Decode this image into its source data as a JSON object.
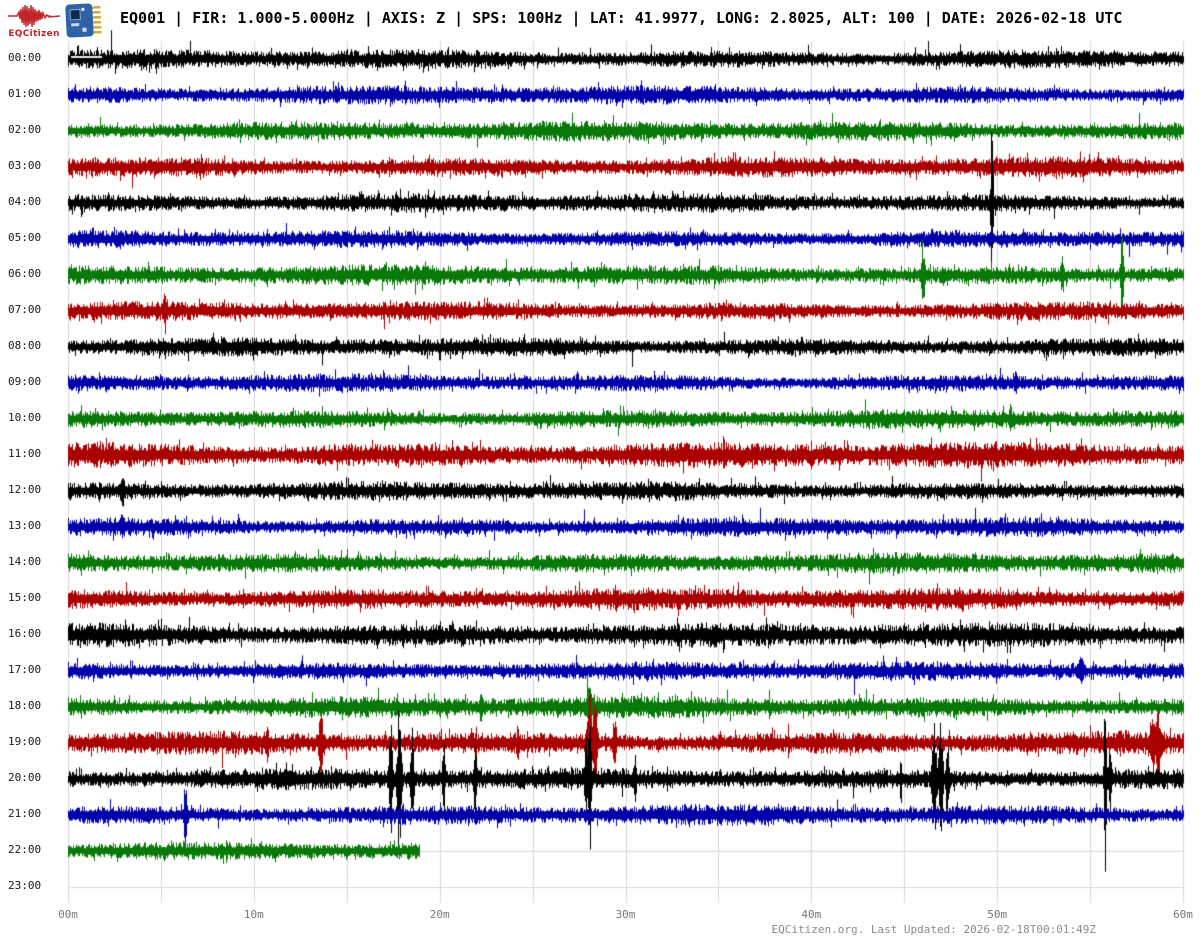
{
  "header": {
    "logo_text": "EQCitizen",
    "title": "EQ001 | FIR: 1.000-5.000Hz | AXIS: Z | SPS: 100Hz | LAT: 41.9977, LONG: 2.8025, ALT: 100 | DATE: 2026-02-18 UTC"
  },
  "footer": {
    "text": "EQCitizen.org. Last Updated: 2026-02-18T00:01:49Z"
  },
  "chart_data": {
    "type": "line",
    "subtype": "helicorder-24h",
    "title": "EQ001 24-hour seismogram, 2026-02-18 UTC",
    "x_axis": {
      "ticks": [
        "00m",
        "10m",
        "20m",
        "30m",
        "40m",
        "50m",
        "60m"
      ],
      "minutes_per_row": 60,
      "minor_grid_interval_min": 5,
      "grid": true
    },
    "y_axis": {
      "ticks": [
        "00:00",
        "01:00",
        "02:00",
        "03:00",
        "04:00",
        "05:00",
        "06:00",
        "07:00",
        "08:00",
        "09:00",
        "10:00",
        "11:00",
        "12:00",
        "13:00",
        "14:00",
        "15:00",
        "16:00",
        "17:00",
        "18:00",
        "19:00",
        "20:00",
        "21:00",
        "22:00",
        "23:00"
      ]
    },
    "palette": {
      "trace_cycle": [
        "#000000",
        "#0000aa",
        "#087808",
        "#aa0000"
      ],
      "grid": "#d8d8d8",
      "axis_text": "#777777",
      "hour_text": "#1a1a1a",
      "background": "#ffffff"
    },
    "seed": 20260218,
    "rows": [
      {
        "hour": "00:00",
        "color": 0,
        "coverage": 1,
        "noise": 7,
        "gap_marker": true,
        "events": []
      },
      {
        "hour": "01:00",
        "color": 1,
        "coverage": 1,
        "noise": 7,
        "events": []
      },
      {
        "hour": "02:00",
        "color": 2,
        "coverage": 1,
        "noise": 7.5,
        "events": []
      },
      {
        "hour": "03:00",
        "color": 3,
        "coverage": 1,
        "noise": 7.5,
        "events": []
      },
      {
        "hour": "04:00",
        "color": 0,
        "coverage": 1,
        "noise": 7,
        "events": [
          [
            49.7,
            88,
            0.05
          ]
        ]
      },
      {
        "hour": "05:00",
        "color": 1,
        "coverage": 1,
        "noise": 6.5,
        "events": []
      },
      {
        "hour": "06:00",
        "color": 2,
        "coverage": 1,
        "noise": 7.5,
        "events": [
          [
            46.0,
            26,
            0.07
          ],
          [
            53.5,
            20,
            0.05
          ],
          [
            56.7,
            58,
            0.05
          ]
        ]
      },
      {
        "hour": "07:00",
        "color": 3,
        "coverage": 1,
        "noise": 7,
        "events": [
          [
            5.2,
            16,
            0.05
          ]
        ]
      },
      {
        "hour": "08:00",
        "color": 0,
        "coverage": 1,
        "noise": 7,
        "events": []
      },
      {
        "hour": "09:00",
        "color": 1,
        "coverage": 1,
        "noise": 6.5,
        "events": [
          [
            51.0,
            12,
            0.05
          ]
        ]
      },
      {
        "hour": "10:00",
        "color": 2,
        "coverage": 1,
        "noise": 7,
        "events": [
          [
            50.7,
            10,
            0.04
          ]
        ]
      },
      {
        "hour": "11:00",
        "color": 3,
        "coverage": 1,
        "noise": 9.5,
        "events": []
      },
      {
        "hour": "12:00",
        "color": 0,
        "coverage": 1,
        "noise": 7,
        "events": [
          [
            2.9,
            12,
            0.08
          ]
        ]
      },
      {
        "hour": "13:00",
        "color": 1,
        "coverage": 1,
        "noise": 7,
        "events": [
          [
            2.9,
            10,
            0.05
          ]
        ]
      },
      {
        "hour": "14:00",
        "color": 2,
        "coverage": 1,
        "noise": 7.5,
        "events": []
      },
      {
        "hour": "15:00",
        "color": 3,
        "coverage": 1,
        "noise": 8,
        "events": []
      },
      {
        "hour": "16:00",
        "color": 0,
        "coverage": 1,
        "noise": 9,
        "events": []
      },
      {
        "hour": "17:00",
        "color": 1,
        "coverage": 1,
        "noise": 7,
        "events": [
          [
            54.5,
            11,
            0.1
          ]
        ]
      },
      {
        "hour": "18:00",
        "color": 2,
        "coverage": 1,
        "noise": 8,
        "events": [
          [
            22.2,
            12,
            0.05
          ],
          [
            28.0,
            14,
            0.08
          ]
        ]
      },
      {
        "hour": "19:00",
        "color": 3,
        "coverage": 1,
        "noise": 8.5,
        "events": [
          [
            10.7,
            14,
            0.05
          ],
          [
            13.6,
            34,
            0.07
          ],
          [
            24.2,
            12,
            0.05
          ],
          [
            28.05,
            45,
            0.09
          ],
          [
            28.35,
            50,
            0.07
          ],
          [
            29.4,
            26,
            0.06
          ],
          [
            58.35,
            25,
            0.1
          ],
          [
            58.65,
            30,
            0.08
          ]
        ]
      },
      {
        "hour": "20:00",
        "color": 0,
        "coverage": 1,
        "noise": 8,
        "events": [
          [
            17.35,
            55,
            0.07
          ],
          [
            17.8,
            75,
            0.08
          ],
          [
            18.5,
            50,
            0.06
          ],
          [
            20.2,
            40,
            0.05
          ],
          [
            21.9,
            42,
            0.05
          ],
          [
            27.85,
            35,
            0.05
          ],
          [
            28.05,
            82,
            0.06
          ],
          [
            30.5,
            18,
            0.05
          ],
          [
            44.8,
            20,
            0.04
          ],
          [
            46.6,
            55,
            0.08
          ],
          [
            46.95,
            65,
            0.07
          ],
          [
            47.3,
            45,
            0.06
          ],
          [
            55.8,
            100,
            0.05
          ],
          [
            56.05,
            40,
            0.05
          ]
        ]
      },
      {
        "hour": "21:00",
        "color": 1,
        "coverage": 1,
        "noise": 7.5,
        "events": [
          [
            6.3,
            32,
            0.06
          ]
        ]
      },
      {
        "hour": "22:00",
        "color": 2,
        "coverage": 0.315,
        "noise": 6.5,
        "events": []
      },
      {
        "hour": "23:00",
        "color": 3,
        "coverage": 0,
        "noise": 0,
        "events": []
      }
    ]
  }
}
